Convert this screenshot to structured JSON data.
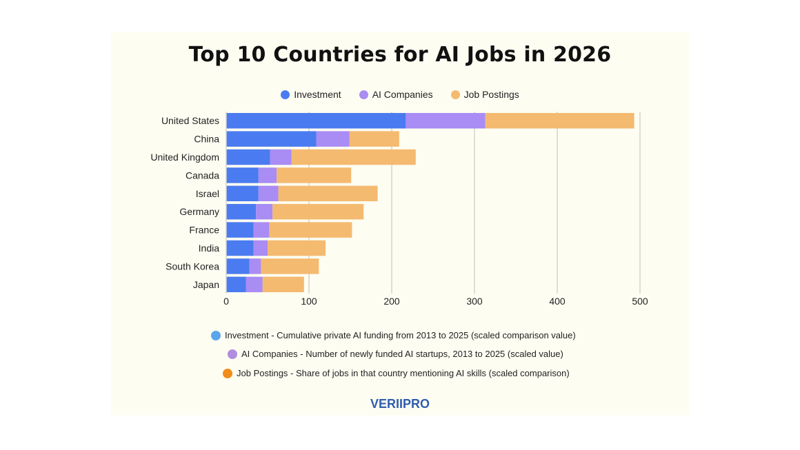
{
  "title": "Top 10 Countries for AI Jobs in 2026",
  "brand": "VERIIPRO",
  "notes": [
    {
      "text": "Investment - Cumulative private AI funding from 2013 to 2025 (scaled comparison value)",
      "color": "#5aa6ea"
    },
    {
      "text": "AI Companies - Number of newly funded AI startups, 2013 to 2025 (scaled value)",
      "color": "#b08de0"
    },
    {
      "text": "Job Postings - Share of jobs in that country mentioning AI skills (scaled comparison)",
      "color": "#f28c1a"
    }
  ],
  "chart_data": {
    "type": "bar",
    "orientation": "horizontal",
    "stacked": true,
    "title": "Top 10 Countries for AI Jobs in 2026",
    "categories": [
      "United States",
      "China",
      "United Kingdom",
      "Canada",
      "Israel",
      "Germany",
      "France",
      "India",
      "South Korea",
      "Japan"
    ],
    "series": [
      {
        "name": "Investment",
        "color": "#4a7bf0",
        "values": [
          217,
          109,
          53,
          39,
          39,
          36,
          33,
          33,
          28,
          24
        ]
      },
      {
        "name": "AI Companies",
        "color": "#a98cf4",
        "values": [
          96,
          40,
          26,
          22,
          24,
          20,
          19,
          17,
          14,
          20
        ]
      },
      {
        "name": "Job Postings",
        "color": "#f4ba70",
        "values": [
          180,
          60,
          150,
          90,
          120,
          110,
          100,
          70,
          70,
          50
        ]
      }
    ],
    "xlim": [
      0,
      500
    ],
    "xticks": [
      0,
      100,
      200,
      300,
      400,
      500
    ],
    "grid": true,
    "legend": "top-center"
  }
}
